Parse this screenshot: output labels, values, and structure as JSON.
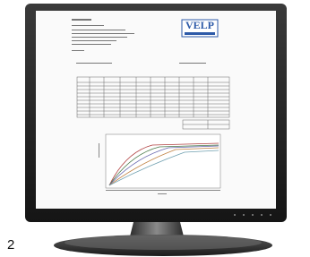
{
  "logo": {
    "text": "VELP"
  },
  "figure_number": "2"
}
